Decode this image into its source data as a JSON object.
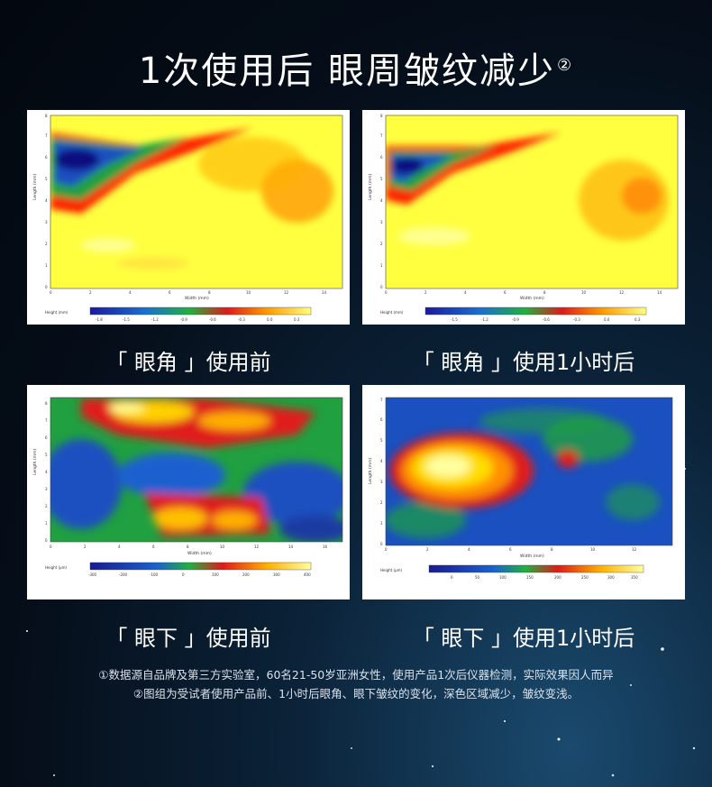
{
  "header": {
    "title": "1次使用后 眼周皱纹减少",
    "title_mark": "②"
  },
  "panels": [
    {
      "caption": "「 眼角 」使用前",
      "y_label": "Length (mm)",
      "x_label": "Width (mm)",
      "legend_label": "Height (mm)",
      "y_ticks": [
        "0",
        "1",
        "2",
        "3",
        "4",
        "5",
        "6",
        "7",
        "8"
      ],
      "x_ticks": [
        "0",
        "2",
        "4",
        "6",
        "8",
        "10",
        "12",
        "14"
      ],
      "scale_ticks": [
        "-1.8",
        "-1.5",
        "-1.2",
        "-0.9",
        "-0.6",
        "-0.3",
        "0.0",
        "0.3"
      ]
    },
    {
      "caption": "「 眼角 」使用1小时后",
      "y_label": "Length (mm)",
      "x_label": "Width (mm)",
      "legend_label": "Height (mm)",
      "y_ticks": [
        "0",
        "1",
        "2",
        "3",
        "4",
        "5",
        "6",
        "7",
        "8"
      ],
      "x_ticks": [
        "0",
        "2",
        "4",
        "6",
        "8",
        "10",
        "12",
        "14"
      ],
      "scale_ticks": [
        "-1.5",
        "-1.2",
        "-0.9",
        "-0.6",
        "-0.3",
        "0.0",
        "0.3"
      ]
    },
    {
      "caption": "「 眼下 」使用前",
      "y_label": "Length (mm)",
      "x_label": "Width (mm)",
      "legend_label": "Height (μm)",
      "y_ticks": [
        "0",
        "1",
        "2",
        "3",
        "4",
        "5",
        "6",
        "7",
        "8"
      ],
      "x_ticks": [
        "0",
        "2",
        "4",
        "6",
        "8",
        "10",
        "12",
        "14",
        "16"
      ],
      "scale_ticks": [
        "-300",
        "-200",
        "-100",
        "0",
        "100",
        "200",
        "300",
        "400"
      ]
    },
    {
      "caption": "「 眼下 」使用1小时后",
      "y_label": "Length (mm)",
      "x_label": "Width (mm)",
      "legend_label": "Height (μm)",
      "y_ticks": [
        "0",
        "1",
        "2",
        "3",
        "4",
        "5",
        "6",
        "7"
      ],
      "x_ticks": [
        "0",
        "2",
        "4",
        "6",
        "8",
        "10",
        "12"
      ],
      "scale_ticks": [
        "0",
        "50",
        "100",
        "150",
        "200",
        "250",
        "300",
        "350"
      ]
    }
  ],
  "footnotes": [
    "①数据源自品牌及第三方实验室，60名21-50岁亚洲女性，使用产品1次后仪器检测，实际效果因人而异",
    "②图组为受试者使用产品前、1小时后眼角、眼下皱纹的变化，深色区域减少，皱纹变浅。"
  ],
  "colors": {
    "heat_low": "#1a1aa0",
    "heat_mid": "#1aa01a",
    "heat_high": "#ff1a00",
    "heat_peak": "#ffff60"
  }
}
